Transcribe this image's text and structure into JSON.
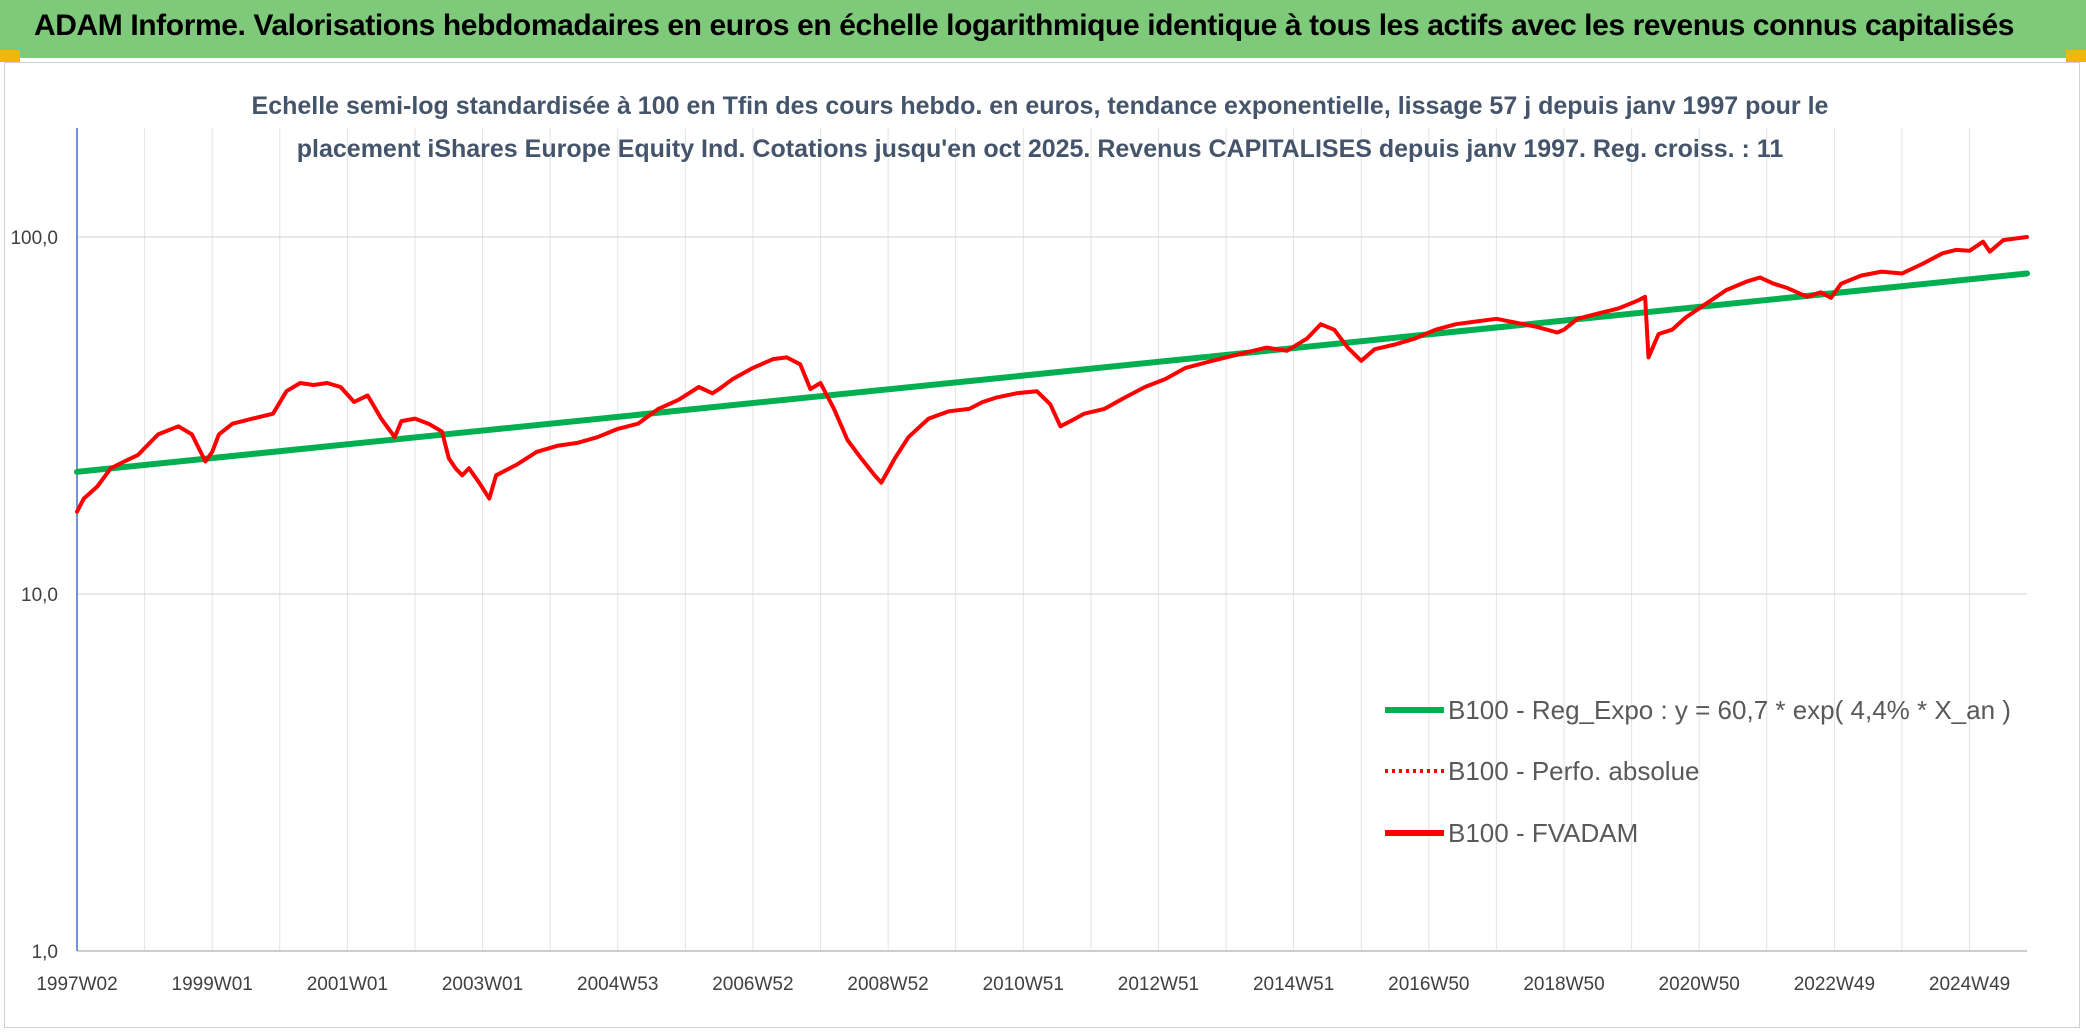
{
  "banner": {
    "title": "ADAM Informe. Valorisations hebdomadaires en euros en échelle logarithmique identique à tous les actifs avec les revenus connus capitalisés",
    "background": "#7fc97a"
  },
  "chart_data": {
    "type": "line",
    "title_lines": [
      "Echelle semi-log standardisée à 100 en Tfin des cours hebdo. en euros, tendance exponentielle, lissage 57 j depuis janv 1997 pour le",
      "placement iShares Europe Equity Ind. Cotations jusqu'en oct 2025. Revenus CAPITALISES depuis janv 1997. Reg. croiss. : 11"
    ],
    "y_scale": "log",
    "ylim": [
      1,
      200
    ],
    "y_ticks": [
      "1,0",
      "10,0",
      "100,0"
    ],
    "y_tick_values": [
      1,
      10,
      100
    ],
    "x_range": [
      1997.0,
      2025.85
    ],
    "x_ticks": [
      "1997W02",
      "1999W01",
      "2001W01",
      "2003W01",
      "2004W53",
      "2006W52",
      "2008W52",
      "2010W51",
      "2012W51",
      "2014W51",
      "2016W50",
      "2018W50",
      "2020W50",
      "2022W49",
      "2024W49"
    ],
    "x_tick_positions": [
      1997.0,
      1999.0,
      2001.0,
      2003.0,
      2005.0,
      2007.0,
      2009.0,
      2011.0,
      2013.0,
      2015.0,
      2017.0,
      2019.0,
      2021.0,
      2023.0,
      2025.0
    ],
    "grid": true,
    "legend_position": "lower-right",
    "series": [
      {
        "name": "B100 - Reg_Expo : y = 60,7 * exp( 4,4% *  X_an )",
        "color": "#00b050",
        "style": "solid",
        "x": [
          1997.0,
          2025.85
        ],
        "y": [
          22.0,
          79.0
        ]
      },
      {
        "name": "B100 - Perfo. absolue",
        "color": "#ff0000",
        "style": "dotted",
        "x": [],
        "y": []
      },
      {
        "name": "B100 - FVADAM",
        "color": "#ff0000",
        "style": "solid",
        "x": [
          1997.0,
          1997.1,
          1997.3,
          1997.5,
          1997.7,
          1997.9,
          1998.2,
          1998.5,
          1998.7,
          1998.9,
          1999.0,
          1999.1,
          1999.3,
          1999.6,
          1999.9,
          2000.1,
          2000.3,
          2000.5,
          2000.7,
          2000.9,
          2001.1,
          2001.3,
          2001.5,
          2001.7,
          2001.8,
          2002.0,
          2002.2,
          2002.4,
          2002.5,
          2002.6,
          2002.7,
          2002.8,
          2002.95,
          2003.1,
          2003.2,
          2003.5,
          2003.8,
          2004.1,
          2004.4,
          2004.7,
          2005.0,
          2005.3,
          2005.6,
          2005.9,
          2006.2,
          2006.4,
          2006.5,
          2006.7,
          2007.0,
          2007.3,
          2007.5,
          2007.7,
          2007.85,
          2008.0,
          2008.2,
          2008.4,
          2008.6,
          2008.8,
          2008.9,
          2009.1,
          2009.3,
          2009.6,
          2009.9,
          2010.2,
          2010.4,
          2010.6,
          2010.9,
          2011.2,
          2011.4,
          2011.55,
          2011.7,
          2011.9,
          2012.2,
          2012.5,
          2012.8,
          2013.1,
          2013.4,
          2013.7,
          2014.0,
          2014.3,
          2014.6,
          2014.9,
          2015.2,
          2015.4,
          2015.6,
          2015.8,
          2016.0,
          2016.2,
          2016.5,
          2016.8,
          2017.1,
          2017.4,
          2017.7,
          2018.0,
          2018.3,
          2018.6,
          2018.9,
          2019.0,
          2019.2,
          2019.5,
          2019.8,
          2020.1,
          2020.2,
          2020.25,
          2020.4,
          2020.6,
          2020.8,
          2021.1,
          2021.4,
          2021.7,
          2021.9,
          2022.1,
          2022.3,
          2022.6,
          2022.8,
          2022.95,
          2023.1,
          2023.4,
          2023.7,
          2024.0,
          2024.3,
          2024.6,
          2024.8,
          2025.0,
          2025.2,
          2025.3,
          2025.5,
          2025.85
        ],
        "y": [
          17.0,
          18.5,
          20.0,
          22.5,
          23.5,
          24.5,
          28.0,
          29.5,
          28.0,
          23.5,
          25.0,
          28.0,
          30.0,
          31.0,
          32.0,
          37.0,
          39.0,
          38.5,
          39.0,
          38.0,
          34.5,
          36.0,
          31.0,
          27.5,
          30.5,
          31.0,
          30.0,
          28.5,
          24.0,
          22.5,
          21.5,
          22.5,
          20.5,
          18.5,
          21.5,
          23.0,
          25.0,
          26.0,
          26.5,
          27.5,
          29.0,
          30.0,
          33.0,
          35.0,
          38.0,
          36.5,
          37.5,
          40.0,
          43.0,
          45.5,
          46.0,
          44.0,
          37.5,
          39.0,
          33.0,
          27.0,
          24.0,
          21.5,
          20.5,
          24.0,
          27.5,
          31.0,
          32.5,
          33.0,
          34.5,
          35.5,
          36.5,
          37.0,
          34.0,
          29.5,
          30.5,
          32.0,
          33.0,
          35.5,
          38.0,
          40.0,
          43.0,
          44.5,
          46.0,
          47.5,
          49.0,
          48.0,
          52.0,
          57.0,
          55.0,
          49.0,
          45.0,
          48.5,
          50.0,
          52.0,
          55.0,
          57.0,
          58.0,
          59.0,
          57.5,
          56.0,
          54.0,
          55.0,
          59.0,
          61.0,
          63.0,
          66.5,
          68.0,
          46.0,
          53.5,
          55.0,
          59.5,
          65.0,
          71.0,
          75.0,
          77.0,
          74.0,
          72.0,
          68.0,
          70.0,
          67.5,
          74.0,
          78.0,
          80.0,
          79.0,
          84.0,
          90.0,
          92.0,
          91.5,
          97.0,
          91.0,
          98.0,
          100.0
        ]
      }
    ]
  }
}
